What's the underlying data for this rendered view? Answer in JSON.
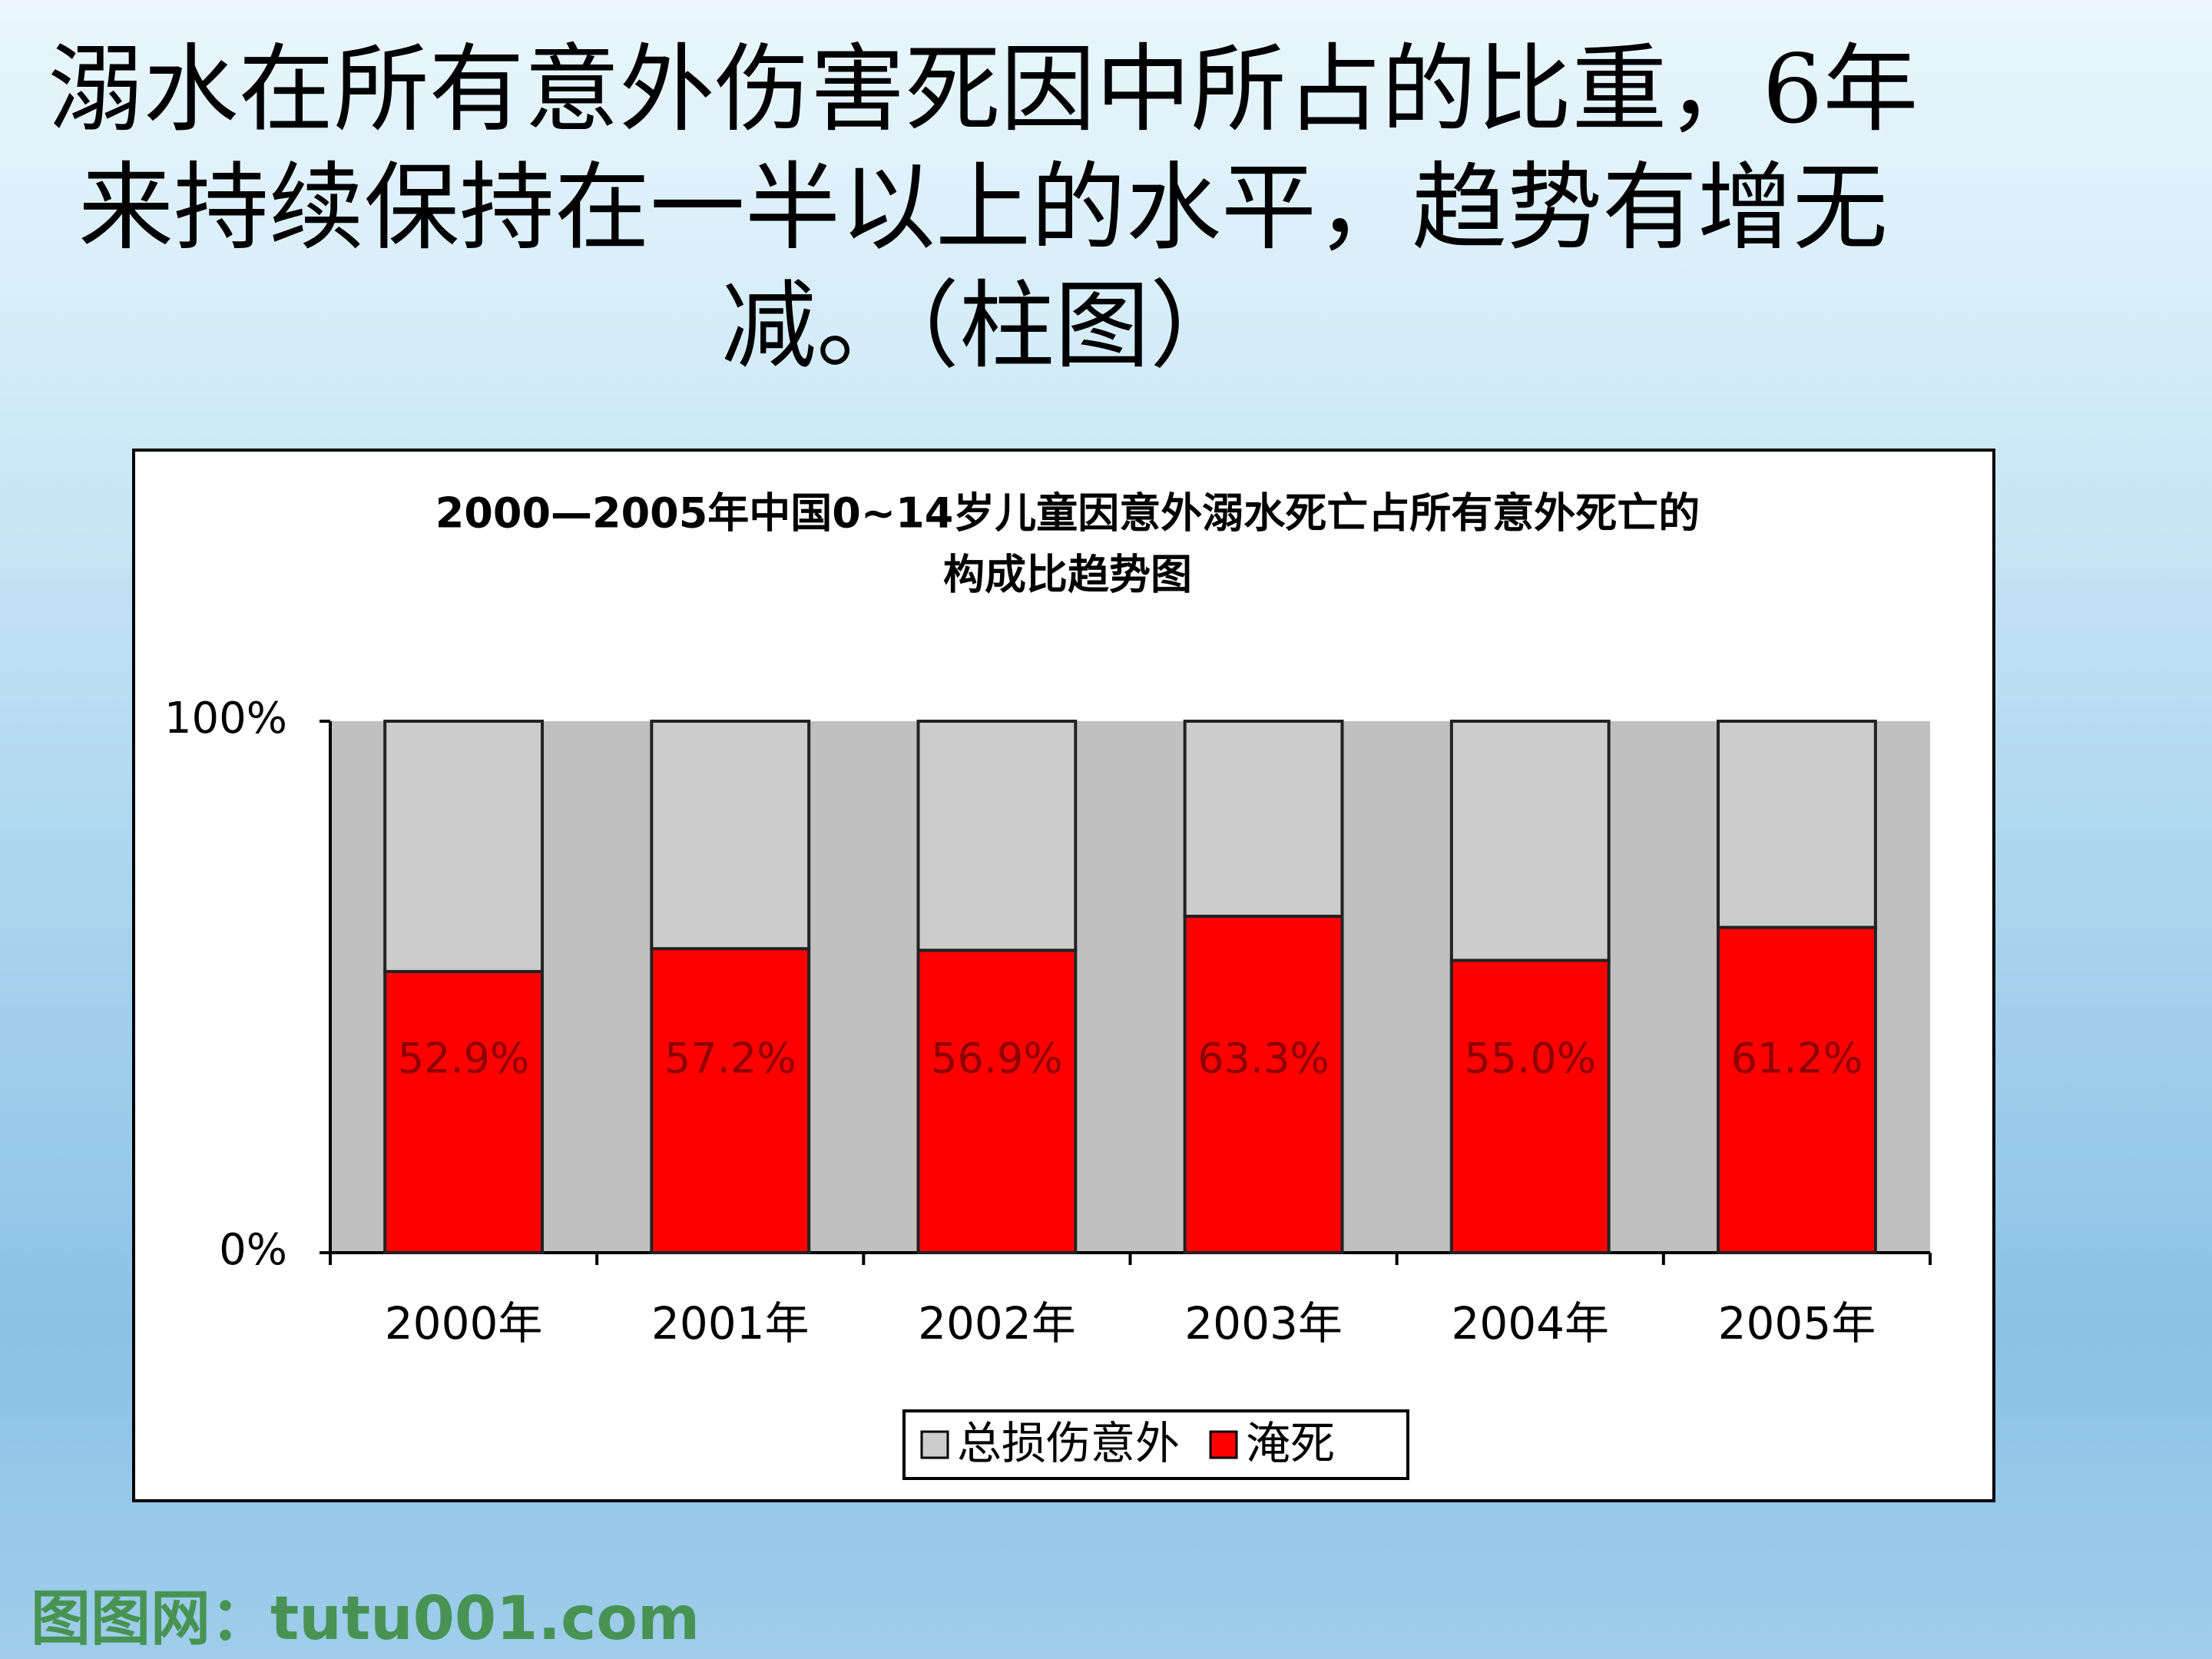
{
  "slide_title": [
    "溺水在所有意外伤害死因中所占的比重，6年",
    "来持续保持在一半以上的水平，趋势有增无",
    "减。（柱图）"
  ],
  "watermark": "图图网：tutu001.com",
  "chart_data": {
    "type": "stacked_bar",
    "title": [
      "2000—2005年中国0~14岁儿童因意外溺水死亡占所有意外死亡的",
      "构成比趋势图"
    ],
    "categories": [
      "2000年",
      "2001年",
      "2002年",
      "2003年",
      "2004年",
      "2005年"
    ],
    "series": [
      {
        "name": "总损伤意外",
        "color": "#cccccc",
        "values": [
          47.1,
          42.8,
          43.1,
          36.7,
          45.0,
          38.8
        ]
      },
      {
        "name": "淹死",
        "color": "#ff0000",
        "values": [
          52.9,
          57.2,
          56.9,
          63.3,
          55.0,
          61.2
        ],
        "value_labels": [
          "52.9%",
          "57.2%",
          "56.9%",
          "63.3%",
          "55.0%",
          "61.2%"
        ]
      }
    ],
    "ylim": [
      0,
      100
    ],
    "yticks": [
      {
        "value": 0,
        "label": "0%"
      },
      {
        "value": 100,
        "label": "100%"
      }
    ],
    "legend": "bottom"
  }
}
